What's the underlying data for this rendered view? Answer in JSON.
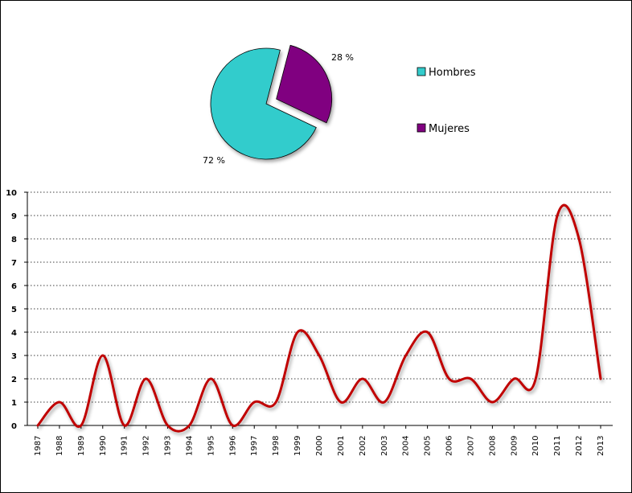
{
  "chart_data": [
    {
      "type": "pie",
      "exploded": true,
      "slices": [
        {
          "label": "Hombres",
          "value": 72,
          "display": "72 %",
          "color": "#33cccc"
        },
        {
          "label": "Mujeres",
          "value": 28,
          "display": "28 %",
          "color": "#800080"
        }
      ],
      "legend": {
        "placement": "right",
        "entries": [
          "Hombres",
          "Mujeres"
        ]
      }
    },
    {
      "type": "line",
      "smoothed": true,
      "line_color": "#c00000",
      "grid": "dotted-horizontal",
      "ylim": [
        0,
        10
      ],
      "yticks": [
        "0",
        "1",
        "2",
        "3",
        "4",
        "5",
        "6",
        "7",
        "8",
        "9",
        "10"
      ],
      "categories": [
        "1987",
        "1988",
        "1989",
        "1990",
        "1991",
        "1992",
        "1993",
        "1994",
        "1995",
        "1996",
        "1997",
        "1998",
        "1999",
        "2000",
        "2001",
        "2002",
        "2003",
        "2004",
        "2005",
        "2006",
        "2007",
        "2008",
        "2009",
        "2010",
        "2011",
        "2012",
        "2013"
      ],
      "values": [
        0,
        1,
        0,
        3,
        0,
        2,
        0,
        0,
        2,
        0,
        1,
        1,
        4,
        3,
        1,
        2,
        1,
        3,
        4,
        2,
        2,
        1,
        2,
        2,
        9,
        8,
        2
      ]
    }
  ]
}
